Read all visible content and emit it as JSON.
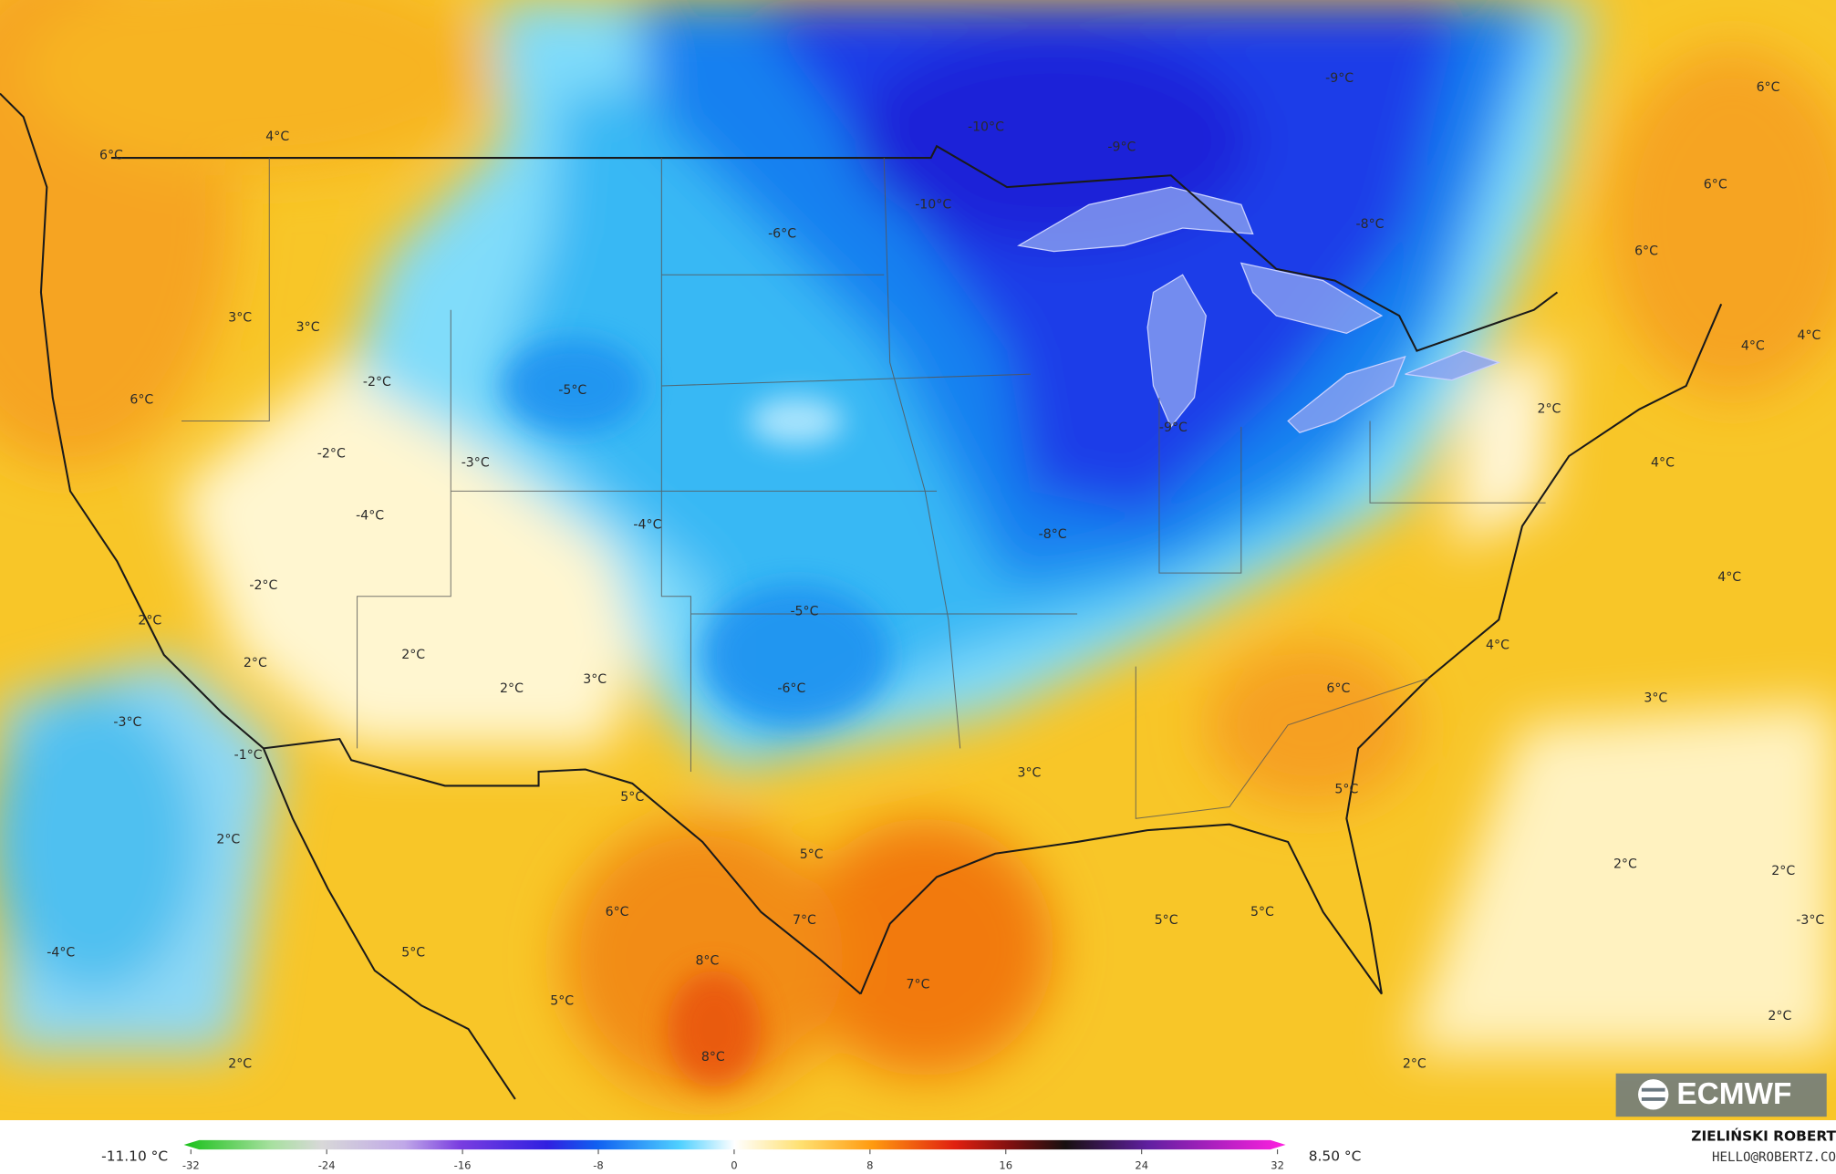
{
  "map": {
    "labels": [
      "4°C",
      "6°C",
      "-10°C",
      "-9°C",
      "-9°C",
      "6°C",
      "-10°C",
      "-8°C",
      "-6°C",
      "6°C",
      "6°C",
      "3°C",
      "3°C",
      "4°C",
      "4°C",
      "-2°C",
      "-5°C",
      "6°C",
      "2°C",
      "-9°C",
      "-2°C",
      "-3°C",
      "4°C",
      "-4°C",
      "-4°C",
      "-8°C",
      "4°C",
      "-2°C",
      "-5°C",
      "2°C",
      "4°C",
      "2°C",
      "2°C",
      "3°C",
      "2°C",
      "-6°C",
      "6°C",
      "3°C",
      "-3°C",
      "-1°C",
      "3°C",
      "5°C",
      "5°C",
      "2°C",
      "5°C",
      "2°C",
      "2°C",
      "6°C",
      "7°C",
      "5°C",
      "5°C",
      "-3°C",
      "-4°C",
      "5°C",
      "8°C",
      "7°C",
      "5°C",
      "2°C",
      "8°C",
      "2°C",
      "2°C"
    ],
    "logo": "ECMWF"
  },
  "colorbar": {
    "min_label": "-11.10 °C",
    "max_label": "8.50 °C",
    "lim": [
      -32,
      32
    ],
    "ticks": [
      -32,
      -24,
      -16,
      -8,
      0,
      8,
      16,
      24,
      32
    ]
  },
  "credit": {
    "author": "ZIELIŃSKI ROBERT",
    "email": "HELLO@ROBERTZ.CO"
  }
}
